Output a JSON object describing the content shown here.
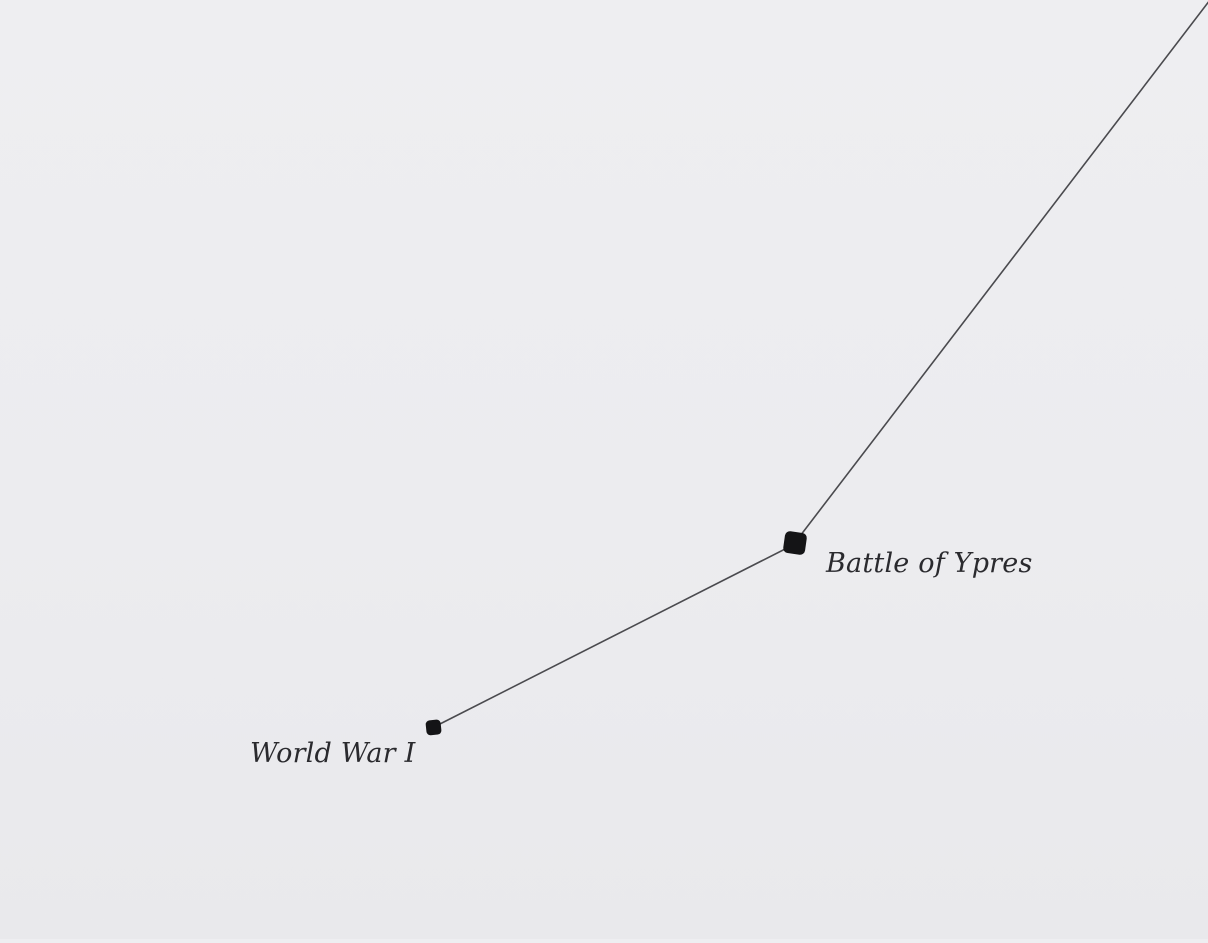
{
  "nodes": {
    "battle_of_ypres": {
      "label": "Battle of Ypres"
    },
    "world_war_i": {
      "label": "World War I"
    }
  },
  "edges": [
    {
      "from": "battle_of_ypres",
      "to": "offscreen-top-right"
    },
    {
      "from": "world_war_i",
      "to": "battle_of_ypres"
    }
  ],
  "colors": {
    "background": "#ececef",
    "edge": "#4a4a4e",
    "node": "#141416",
    "label": "#2a2a2e"
  }
}
